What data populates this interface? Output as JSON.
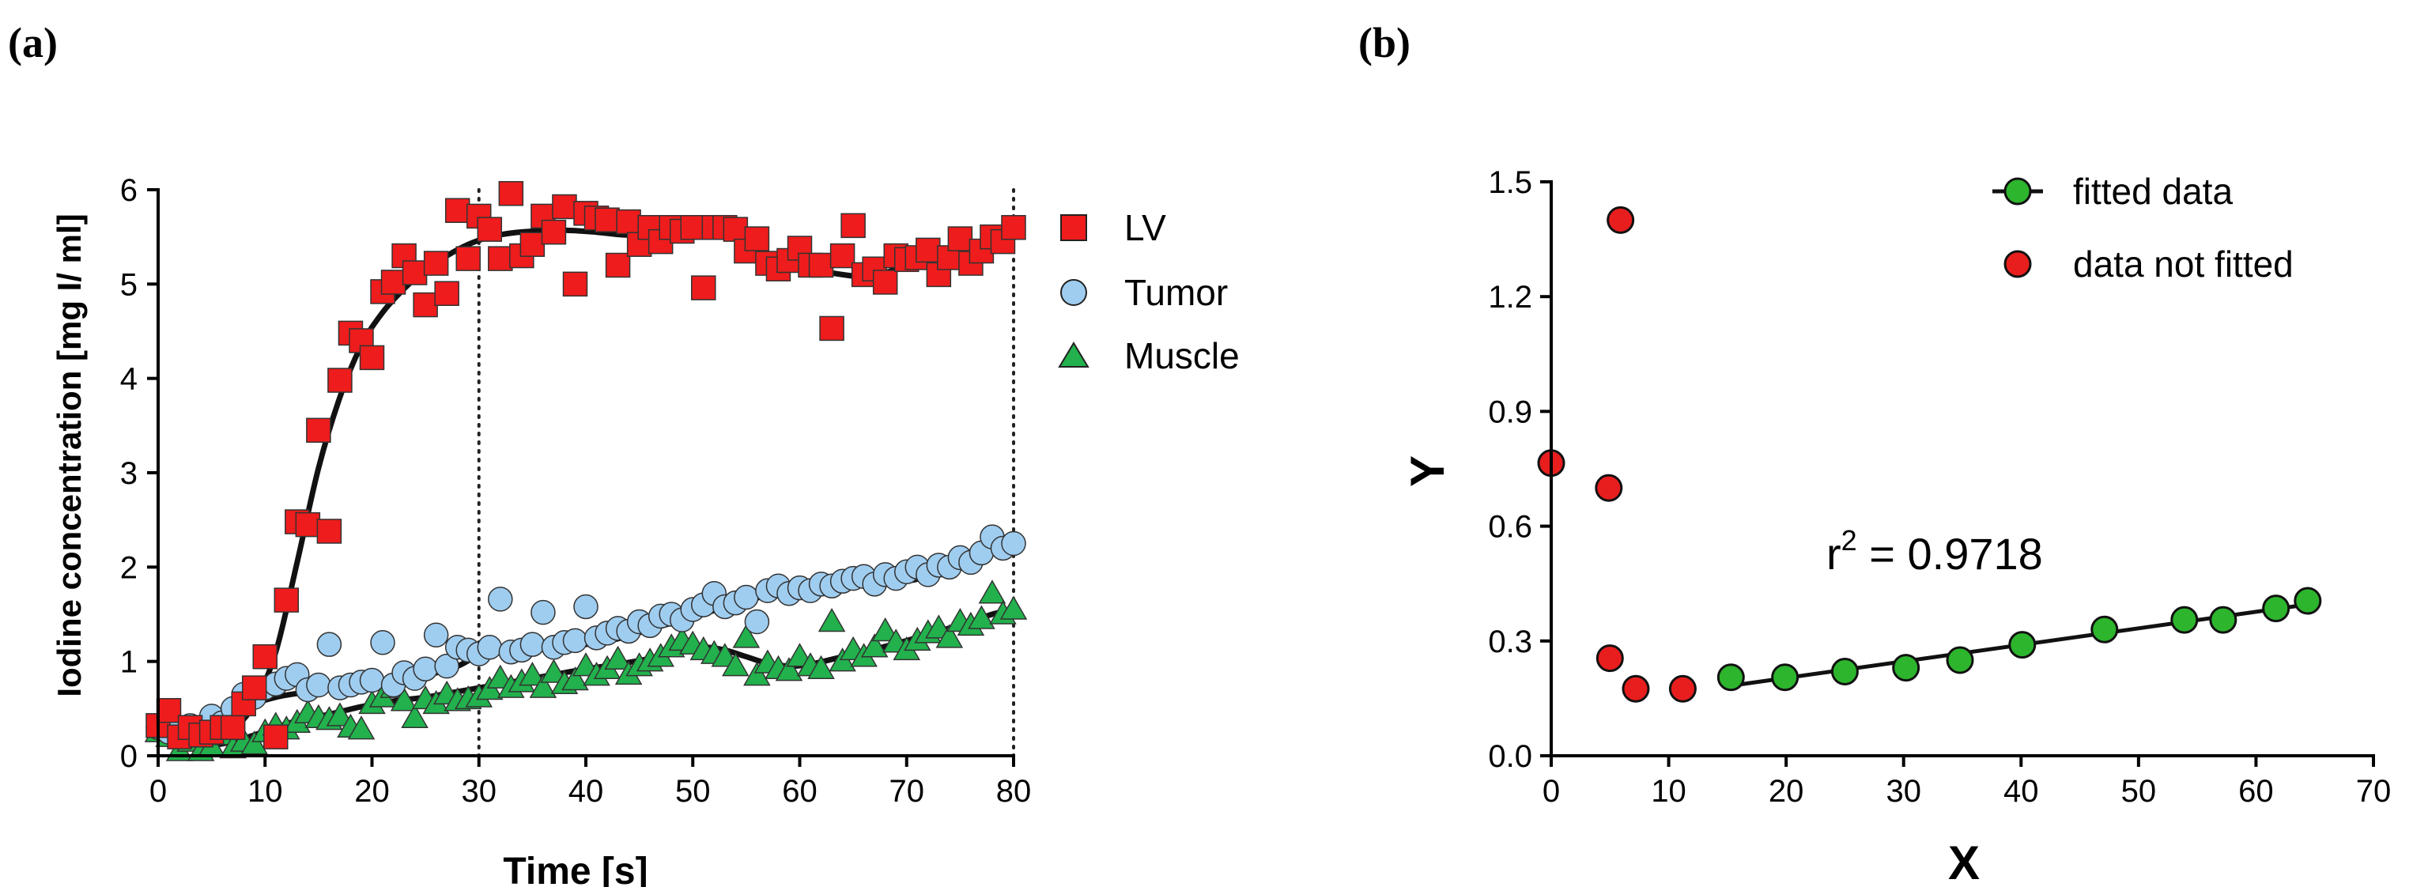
{
  "panel_labels": [
    "(a)",
    "(b)"
  ],
  "colors": {
    "lv": "#ee1c1c",
    "tumor": "#9fcdf0",
    "muscle": "#22b14c",
    "fit_point": "#2db52d",
    "not_fitted": "#e81e1e",
    "line": "#111111"
  },
  "chart_data": [
    {
      "type": "scatter",
      "title": "",
      "xlabel": "Time [s]",
      "ylabel": "Iodine concentration [mg I/ ml]",
      "xlim": [
        0,
        80
      ],
      "ylim": [
        0,
        6
      ],
      "xticks": [
        0,
        10,
        20,
        30,
        40,
        50,
        60,
        70,
        80
      ],
      "yticks": [
        0,
        1,
        2,
        3,
        4,
        5,
        6
      ],
      "reference_lines_x": [
        30,
        80
      ],
      "legend_position": "right",
      "series": [
        {
          "name": "LV",
          "marker": "square",
          "color": "#ee1c1c",
          "x": [
            0,
            1,
            2,
            3,
            4,
            5,
            6,
            7,
            8,
            9,
            10,
            11,
            12,
            13,
            14,
            15,
            16,
            17,
            18,
            19,
            20,
            21,
            22,
            23,
            24,
            25,
            26,
            27,
            28,
            29,
            30,
            31,
            32,
            33,
            34,
            35,
            36,
            37,
            38,
            39,
            40,
            41,
            42,
            43,
            44,
            45,
            46,
            47,
            48,
            49,
            50,
            51,
            52,
            53,
            54,
            55,
            56,
            57,
            58,
            59,
            60,
            61,
            62,
            63,
            64,
            65,
            66,
            67,
            68,
            69,
            70,
            71,
            72,
            73,
            74,
            75,
            76,
            77,
            78,
            79,
            80
          ],
          "y": [
            0.32,
            0.48,
            0.2,
            0.3,
            0.22,
            0.25,
            0.3,
            0.3,
            0.55,
            0.72,
            1.05,
            0.2,
            1.65,
            2.48,
            2.45,
            3.45,
            2.38,
            3.98,
            4.48,
            4.4,
            4.22,
            4.92,
            5.02,
            5.3,
            5.12,
            4.78,
            5.22,
            4.9,
            5.78,
            5.27,
            5.72,
            5.58,
            5.27,
            5.96,
            5.3,
            5.42,
            5.72,
            5.55,
            5.82,
            5.0,
            5.75,
            5.7,
            5.68,
            5.2,
            5.66,
            5.42,
            5.6,
            5.45,
            5.6,
            5.56,
            5.6,
            4.96,
            5.6,
            5.6,
            5.58,
            5.35,
            5.48,
            5.22,
            5.16,
            5.25,
            5.38,
            5.2,
            5.2,
            4.53,
            5.3,
            5.62,
            5.1,
            5.16,
            5.02,
            5.3,
            5.26,
            5.28,
            5.36,
            5.1,
            5.28,
            5.48,
            5.22,
            5.35,
            5.5,
            5.45,
            5.6
          ]
        },
        {
          "name": "Tumor",
          "marker": "circle",
          "color": "#9fcdf0",
          "x": [
            0,
            1,
            2,
            3,
            4,
            5,
            6,
            7,
            8,
            9,
            10,
            11,
            12,
            13,
            14,
            15,
            16,
            17,
            18,
            19,
            20,
            21,
            22,
            23,
            24,
            25,
            26,
            27,
            28,
            29,
            30,
            31,
            32,
            33,
            34,
            35,
            36,
            37,
            38,
            39,
            40,
            41,
            42,
            43,
            44,
            45,
            46,
            47,
            48,
            49,
            50,
            51,
            52,
            53,
            54,
            55,
            56,
            57,
            58,
            59,
            60,
            61,
            62,
            63,
            64,
            65,
            66,
            67,
            68,
            69,
            70,
            71,
            72,
            73,
            74,
            75,
            76,
            77,
            78,
            79,
            80
          ],
          "y": [
            0.3,
            0.25,
            0.28,
            0.32,
            0.28,
            0.42,
            0.35,
            0.5,
            0.65,
            0.62,
            0.72,
            0.76,
            0.82,
            0.86,
            0.7,
            0.75,
            1.18,
            0.72,
            0.75,
            0.78,
            0.8,
            1.2,
            0.75,
            0.88,
            0.82,
            0.92,
            1.28,
            0.95,
            1.15,
            1.12,
            1.08,
            1.15,
            1.66,
            1.1,
            1.12,
            1.18,
            1.52,
            1.15,
            1.2,
            1.22,
            1.58,
            1.25,
            1.3,
            1.35,
            1.32,
            1.42,
            1.38,
            1.48,
            1.5,
            1.44,
            1.55,
            1.6,
            1.72,
            1.58,
            1.62,
            1.68,
            1.42,
            1.75,
            1.8,
            1.72,
            1.78,
            1.75,
            1.82,
            1.8,
            1.85,
            1.88,
            1.9,
            1.82,
            1.92,
            1.88,
            1.95,
            2.0,
            1.92,
            2.02,
            2.0,
            2.1,
            2.05,
            2.15,
            2.32,
            2.2,
            2.25
          ]
        },
        {
          "name": "Muscle",
          "marker": "triangle",
          "color": "#22b14c",
          "x": [
            0,
            1,
            2,
            3,
            4,
            5,
            6,
            7,
            8,
            9,
            10,
            11,
            12,
            13,
            14,
            15,
            16,
            17,
            18,
            19,
            20,
            21,
            22,
            23,
            24,
            25,
            26,
            27,
            28,
            29,
            30,
            31,
            32,
            33,
            34,
            35,
            36,
            37,
            38,
            39,
            40,
            41,
            42,
            43,
            44,
            45,
            46,
            47,
            48,
            49,
            50,
            51,
            52,
            53,
            54,
            55,
            56,
            57,
            58,
            59,
            60,
            61,
            62,
            63,
            64,
            65,
            66,
            67,
            68,
            69,
            70,
            71,
            72,
            73,
            74,
            75,
            76,
            77,
            78,
            79,
            80
          ],
          "y": [
            0.25,
            0.2,
            0.05,
            0.15,
            0.05,
            0.1,
            0.22,
            0.08,
            0.15,
            0.12,
            0.25,
            0.32,
            0.28,
            0.35,
            0.45,
            0.4,
            0.38,
            0.42,
            0.3,
            0.28,
            0.55,
            0.62,
            0.72,
            0.58,
            0.4,
            0.6,
            0.55,
            0.65,
            0.58,
            0.6,
            0.62,
            0.7,
            0.82,
            0.72,
            0.78,
            0.85,
            0.72,
            0.88,
            0.76,
            0.8,
            0.95,
            0.85,
            0.92,
            1.02,
            0.86,
            0.95,
            1.0,
            1.05,
            1.15,
            1.22,
            1.18,
            1.12,
            1.08,
            1.05,
            0.95,
            1.25,
            0.85,
            0.98,
            0.92,
            0.9,
            1.05,
            0.95,
            0.92,
            1.42,
            1.0,
            1.12,
            1.05,
            1.15,
            1.32,
            1.2,
            1.12,
            1.22,
            1.3,
            1.35,
            1.25,
            1.42,
            1.38,
            1.45,
            1.72,
            1.5,
            1.55
          ]
        }
      ],
      "fit_curves": [
        {
          "name": "LV fit",
          "x": [
            0,
            3,
            5,
            7,
            9,
            11,
            13,
            15,
            17,
            19,
            21,
            23,
            25,
            27,
            29,
            31,
            33,
            35,
            38,
            41,
            44,
            47,
            50,
            53,
            55,
            57,
            59,
            62,
            64,
            66,
            68,
            70,
            72,
            74,
            76,
            78,
            80
          ],
          "y": [
            0.28,
            0.2,
            0.18,
            0.28,
            0.55,
            1.1,
            2.05,
            3.05,
            3.8,
            4.35,
            4.7,
            4.95,
            5.15,
            5.3,
            5.42,
            5.5,
            5.54,
            5.56,
            5.57,
            5.55,
            5.52,
            5.56,
            5.6,
            5.58,
            5.48,
            5.32,
            5.22,
            5.14,
            5.1,
            5.08,
            5.12,
            5.2,
            5.27,
            5.32,
            5.36,
            5.42,
            5.5
          ]
        },
        {
          "name": "Tumor fit",
          "x": [
            0,
            3,
            5,
            7,
            9,
            11,
            13,
            16,
            19,
            22,
            25,
            28,
            30,
            32,
            34,
            37,
            40,
            43,
            46,
            49,
            52,
            55,
            58,
            61,
            64,
            67,
            70,
            73,
            76,
            78,
            80
          ],
          "y": [
            0.3,
            0.28,
            0.3,
            0.42,
            0.55,
            0.62,
            0.66,
            0.7,
            0.74,
            0.78,
            0.85,
            0.95,
            1.07,
            1.12,
            1.12,
            1.14,
            1.18,
            1.24,
            1.34,
            1.44,
            1.54,
            1.64,
            1.73,
            1.78,
            1.8,
            1.82,
            1.85,
            1.93,
            2.05,
            2.15,
            2.22
          ]
        },
        {
          "name": "Muscle fit",
          "x": [
            0,
            3,
            5,
            7,
            9,
            11,
            13,
            16,
            19,
            22,
            25,
            28,
            31,
            34,
            37,
            40,
            43,
            46,
            49,
            51,
            53,
            55,
            57,
            59,
            61,
            64,
            67,
            70,
            73,
            76,
            78,
            80
          ],
          "y": [
            0.25,
            0.18,
            0.12,
            0.15,
            0.22,
            0.3,
            0.37,
            0.44,
            0.52,
            0.58,
            0.62,
            0.68,
            0.74,
            0.8,
            0.86,
            0.92,
            0.97,
            1.03,
            1.1,
            1.15,
            1.12,
            1.05,
            0.98,
            0.95,
            0.97,
            1.05,
            1.13,
            1.22,
            1.32,
            1.42,
            1.5,
            1.55
          ]
        }
      ]
    },
    {
      "type": "scatter",
      "title": "",
      "xlabel": "X",
      "ylabel": "Y",
      "xlim": [
        0,
        70
      ],
      "ylim": [
        0.0,
        1.5
      ],
      "xticks": [
        0,
        10,
        20,
        30,
        40,
        50,
        60,
        70
      ],
      "xtick_labels": [
        "0",
        "10",
        "20",
        "30",
        "40",
        "50",
        "60",
        "70"
      ],
      "yticks": [
        0.0,
        0.3,
        0.6,
        0.9,
        1.2,
        1.5
      ],
      "ytick_labels": [
        "0.0",
        "0.3",
        "0.6",
        "0.9",
        "1.2",
        "1.5"
      ],
      "legend_position": "top-right",
      "annotation": {
        "base": "r",
        "sup": "2",
        "rest": " = 0.9718",
        "x": 35,
        "y": 0.55
      },
      "series": [
        {
          "name": "fitted data",
          "marker": "circle",
          "color": "#2db52d",
          "connected": true,
          "x": [
            15.3,
            19.9,
            25.0,
            30.2,
            34.8,
            40.1,
            47.1,
            53.9,
            57.2,
            61.7,
            64.4
          ],
          "y": [
            0.205,
            0.205,
            0.22,
            0.23,
            0.25,
            0.29,
            0.33,
            0.355,
            0.355,
            0.385,
            0.405
          ]
        },
        {
          "name": "data not fitted",
          "marker": "circle",
          "color": "#e81e1e",
          "connected": false,
          "x": [
            0.0,
            4.9,
            5.0,
            5.9,
            7.2,
            11.2
          ],
          "y": [
            0.765,
            0.7,
            0.255,
            1.4,
            0.175,
            0.175
          ]
        }
      ]
    }
  ]
}
